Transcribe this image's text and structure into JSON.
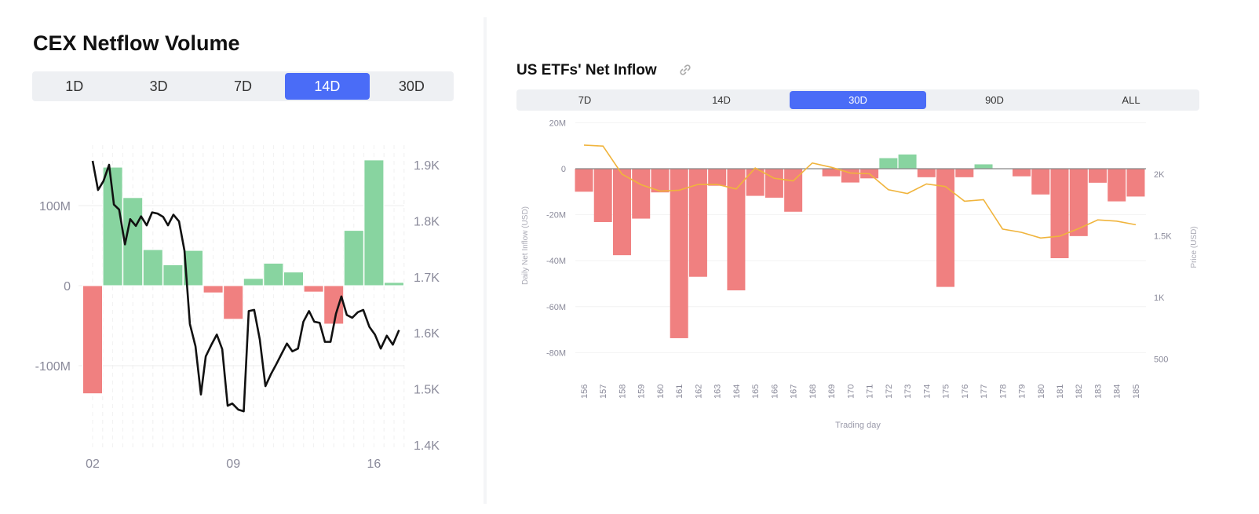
{
  "left": {
    "title": "CEX Netflow Volume",
    "tabs": [
      {
        "label": "1D"
      },
      {
        "label": "3D"
      },
      {
        "label": "7D"
      },
      {
        "label": "14D",
        "active": true
      },
      {
        "label": "30D"
      }
    ]
  },
  "right": {
    "title": "US ETFs' Net Inflow",
    "link_icon": "link-icon",
    "tabs": [
      {
        "label": "7D"
      },
      {
        "label": "14D"
      },
      {
        "label": "30D",
        "active": true
      },
      {
        "label": "90D"
      },
      {
        "label": "ALL"
      }
    ]
  },
  "colors": {
    "positive": "#88d4a0",
    "negative": "#f08080",
    "accent": "#4a6cf7",
    "left_price_line": "#111111",
    "right_price_line": "#f0b43c"
  },
  "chart_data": [
    {
      "type": "bar+line",
      "title": "CEX Netflow Volume",
      "x_tick_labels": [
        "02",
        "09",
        "16"
      ],
      "categories": [
        "02",
        "03",
        "04",
        "05",
        "06",
        "07",
        "08",
        "09",
        "10",
        "11",
        "12",
        "13",
        "14",
        "15",
        "16",
        "17"
      ],
      "bar_values_M": [
        -135,
        148,
        110,
        45,
        26,
        44,
        -9,
        -42,
        9,
        28,
        17,
        -8,
        -48,
        69,
        157,
        4
      ],
      "left_axis": {
        "ticks": [
          "100M",
          "0",
          "-100M"
        ],
        "tick_values": [
          100,
          0,
          -100
        ],
        "range_M": [
          -200,
          200
        ]
      },
      "right_axis": {
        "ticks": [
          "1.9K",
          "1.8K",
          "1.7K",
          "1.6K",
          "1.5K",
          "1.4K"
        ],
        "tick_values": [
          1900,
          1800,
          1700,
          1600,
          1500,
          1400
        ],
        "range": [
          1400,
          1910
        ]
      },
      "price_line": {
        "x_day": [
          2.0,
          2.27,
          2.54,
          2.82,
          3.06,
          3.32,
          3.61,
          3.87,
          4.15,
          4.41,
          4.69,
          4.96,
          5.23,
          5.51,
          5.75,
          6.02,
          6.3,
          6.57,
          6.84,
          7.12,
          7.39,
          7.63,
          7.9,
          8.18,
          8.45,
          8.72,
          8.95,
          9.25,
          9.52,
          9.77,
          10.04,
          10.32,
          10.6,
          10.87,
          11.14,
          11.41,
          11.67,
          11.94,
          12.22,
          12.49,
          12.77,
          13.03,
          13.3,
          13.56,
          13.84,
          14.11,
          14.38,
          14.65,
          14.92,
          15.2,
          15.47,
          15.77,
          16.05,
          16.34,
          16.64,
          16.94,
          17.25
        ],
        "y": [
          1907,
          1855,
          1871,
          1900,
          1829,
          1820,
          1758,
          1803,
          1791,
          1808,
          1792,
          1815,
          1813,
          1807,
          1792,
          1811,
          1799,
          1747,
          1616,
          1576,
          1490,
          1558,
          1578,
          1597,
          1571,
          1470,
          1474,
          1463,
          1460,
          1639,
          1641,
          1588,
          1505,
          1526,
          1544,
          1563,
          1581,
          1567,
          1572,
          1620,
          1639,
          1620,
          1618,
          1584,
          1584,
          1634,
          1665,
          1632,
          1627,
          1637,
          1641,
          1611,
          1597,
          1572,
          1595,
          1579,
          1605
        ]
      },
      "grid": true
    },
    {
      "type": "bar+line",
      "title": "US ETFs' Net Inflow",
      "xlabel": "Trading day",
      "ylabel": "Daily Net Inflow (USD)",
      "y2label": "Price (USD)",
      "categories": [
        "156",
        "157",
        "158",
        "159",
        "160",
        "161",
        "162",
        "163",
        "164",
        "165",
        "166",
        "167",
        "168",
        "169",
        "170",
        "171",
        "172",
        "173",
        "174",
        "175",
        "176",
        "177",
        "178",
        "179",
        "180",
        "181",
        "182",
        "183",
        "184",
        "185"
      ],
      "bar_values_M": [
        -10,
        -23.2,
        -37.6,
        -21.7,
        -10.3,
        -73.7,
        -47,
        -7.4,
        -52.9,
        -11.8,
        -12.6,
        -18.7,
        0,
        -3.3,
        -6,
        -4.2,
        4.6,
        6.2,
        -3.7,
        -51.4,
        -3.7,
        1.9,
        0,
        -3.3,
        -11.2,
        -38.9,
        -29.3,
        -6.1,
        -14.2,
        -12.1
      ],
      "price": [
        2236,
        2228,
        2000,
        1915,
        1863,
        1870,
        1917,
        1917,
        1880,
        2050,
        1967,
        1946,
        2091,
        2056,
        2010,
        2004,
        1874,
        1843,
        1921,
        1900,
        1781,
        1793,
        1555,
        1528,
        1482,
        1497,
        1559,
        1629,
        1619,
        1590
      ],
      "left_axis": {
        "ticks": [
          "20M",
          "0",
          "-20M",
          "-40M",
          "-60M",
          "-80M"
        ],
        "tick_values": [
          20,
          0,
          -20,
          -40,
          -60,
          -80
        ]
      },
      "right_axis": {
        "ticks": [
          "2K",
          "1.5K",
          "1K",
          "500"
        ],
        "tick_values": [
          2000,
          1500,
          1000,
          500
        ]
      },
      "grid": true,
      "legend": "none"
    }
  ]
}
